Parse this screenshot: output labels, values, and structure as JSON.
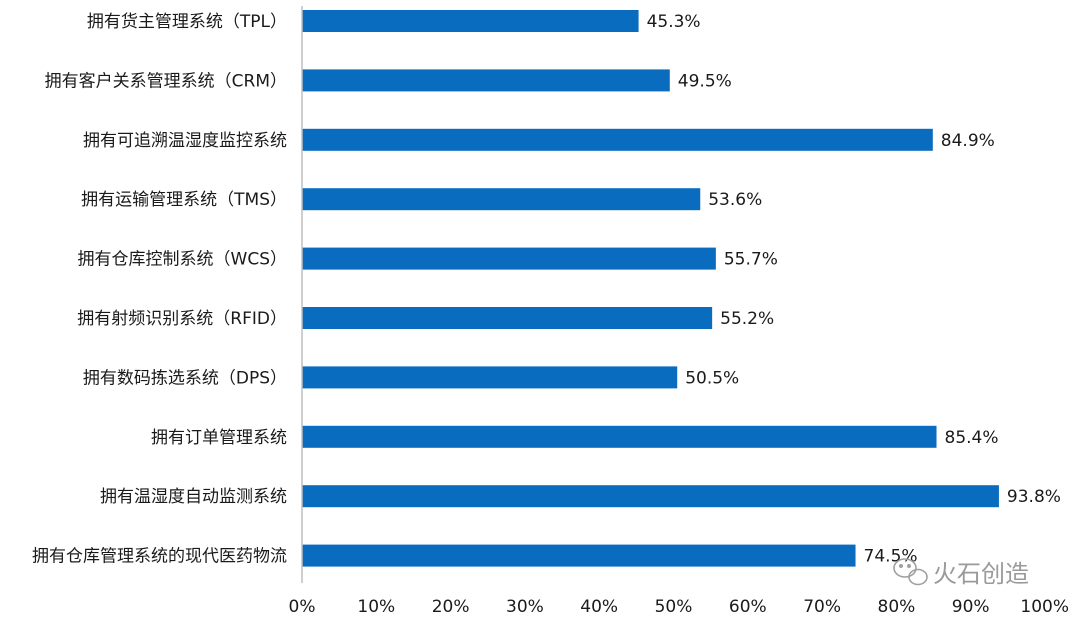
{
  "chart_data": {
    "type": "bar",
    "orientation": "horizontal",
    "categories": [
      "拥有货主管理系统（TPL）",
      "拥有客户关系管理系统（CRM）",
      "拥有可追溯温湿度监控系统",
      "拥有运输管理系统（TMS）",
      "拥有仓库控制系统（WCS）",
      "拥有射频识别系统（RFID）",
      "拥有数码拣选系统（DPS）",
      "拥有订单管理系统",
      "拥有温湿度自动监测系统",
      "拥有仓库管理系统的现代医药物流"
    ],
    "values": [
      45.3,
      49.5,
      84.9,
      53.6,
      55.7,
      55.2,
      50.5,
      85.4,
      93.8,
      74.5
    ],
    "value_labels": [
      "45.3%",
      "49.5%",
      "84.9%",
      "53.6%",
      "55.7%",
      "55.2%",
      "50.5%",
      "85.4%",
      "93.8%",
      "74.5%"
    ],
    "xlim": [
      0,
      100
    ],
    "x_ticks": [
      "0%",
      "10%",
      "20%",
      "30%",
      "40%",
      "50%",
      "60%",
      "70%",
      "80%",
      "90%",
      "100%"
    ],
    "grid": false,
    "bar_color": "#0a6cbf"
  },
  "watermark": {
    "text": "火石创造",
    "icon": "wechat-icon"
  }
}
